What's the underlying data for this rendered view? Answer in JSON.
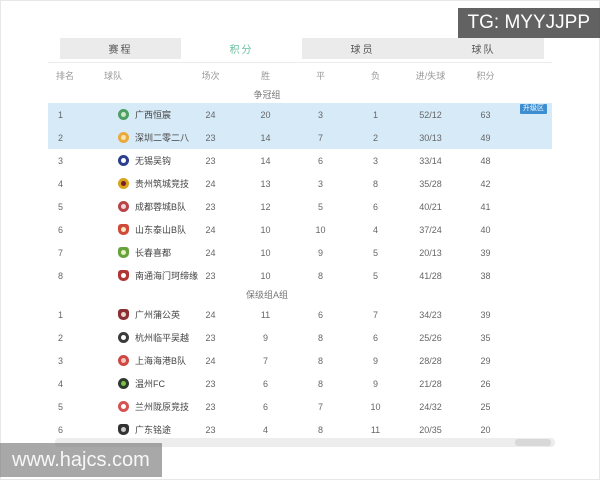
{
  "watermarks": {
    "top_right": "TG: MYYJJPP",
    "bottom_left": "www.hajcs.com"
  },
  "tabs": [
    {
      "key": "schedule",
      "label": "赛程",
      "active": false
    },
    {
      "key": "standings",
      "label": "积分",
      "active": true
    },
    {
      "key": "players",
      "label": "球员",
      "active": false
    },
    {
      "key": "teams",
      "label": "球队",
      "active": false
    }
  ],
  "colors": {
    "active_tab_text": "#6abf9e",
    "inactive_tab_bg": "#ebebeb",
    "highlight_row_bg": "#d7eaf8",
    "promotion_tag_bg": "#3d8ed0"
  },
  "table": {
    "columns": [
      {
        "key": "rank",
        "label": "排名"
      },
      {
        "key": "team",
        "label": "球队"
      },
      {
        "key": "played",
        "label": "场次"
      },
      {
        "key": "win",
        "label": "胜"
      },
      {
        "key": "draw",
        "label": "平"
      },
      {
        "key": "loss",
        "label": "负"
      },
      {
        "key": "goals",
        "label": "进/失球"
      },
      {
        "key": "points",
        "label": "积分"
      }
    ],
    "groups": [
      {
        "name": "争冠组",
        "rows": [
          {
            "rank": "1",
            "team": "广西恒宸",
            "icon": "team-crest-icon",
            "shape": "circle",
            "icon_color": "#4c9e63",
            "icon_inner": "#cfe6c8",
            "played": "24",
            "win": "20",
            "draw": "3",
            "loss": "1",
            "goals": "52/12",
            "points": "63",
            "highlighted": true,
            "tag": "升级区"
          },
          {
            "rank": "2",
            "team": "深圳二零二八",
            "icon": "team-crest-icon",
            "shape": "circle",
            "icon_color": "#e9a93c",
            "icon_inner": "#f6e3b0",
            "played": "23",
            "win": "14",
            "draw": "7",
            "loss": "2",
            "goals": "30/13",
            "points": "49",
            "highlighted": true,
            "tag": ""
          },
          {
            "rank": "3",
            "team": "无锡吴钩",
            "icon": "team-crest-icon",
            "shape": "circle",
            "icon_color": "#2c3f8f",
            "icon_inner": "#ffffff",
            "played": "23",
            "win": "14",
            "draw": "6",
            "loss": "3",
            "goals": "33/14",
            "points": "48",
            "highlighted": false,
            "tag": ""
          },
          {
            "rank": "4",
            "team": "贵州筑城竞技",
            "icon": "team-crest-icon",
            "shape": "circle",
            "icon_color": "#d8a31f",
            "icon_inner": "#7a1f1f",
            "played": "24",
            "win": "13",
            "draw": "3",
            "loss": "8",
            "goals": "35/28",
            "points": "42",
            "highlighted": false,
            "tag": ""
          },
          {
            "rank": "5",
            "team": "成都蓉城B队",
            "icon": "team-crest-icon",
            "shape": "circle",
            "icon_color": "#b8434a",
            "icon_inner": "#f2d8d8",
            "played": "23",
            "win": "12",
            "draw": "5",
            "loss": "6",
            "goals": "40/21",
            "points": "41",
            "highlighted": false,
            "tag": ""
          },
          {
            "rank": "6",
            "team": "山东泰山B队",
            "icon": "team-crest-icon",
            "shape": "shield",
            "icon_color": "#d04a3a",
            "icon_inner": "#f7e9c8",
            "played": "24",
            "win": "10",
            "draw": "10",
            "loss": "4",
            "goals": "37/24",
            "points": "40",
            "highlighted": false,
            "tag": ""
          },
          {
            "rank": "7",
            "team": "长春喜都",
            "icon": "team-crest-icon",
            "shape": "shield",
            "icon_color": "#68a23f",
            "icon_inner": "#e8f0c0",
            "played": "24",
            "win": "10",
            "draw": "9",
            "loss": "5",
            "goals": "20/13",
            "points": "39",
            "highlighted": false,
            "tag": ""
          },
          {
            "rank": "8",
            "team": "南通海门珂缔缘",
            "icon": "team-crest-icon",
            "shape": "shield",
            "icon_color": "#b03636",
            "icon_inner": "#ffffff",
            "played": "23",
            "win": "10",
            "draw": "8",
            "loss": "5",
            "goals": "41/28",
            "points": "38",
            "highlighted": false,
            "tag": ""
          }
        ]
      },
      {
        "name": "保级组A组",
        "rows": [
          {
            "rank": "1",
            "team": "广州蒲公英",
            "icon": "team-crest-icon",
            "shape": "shield",
            "icon_color": "#8c2f33",
            "icon_inner": "#e8d9d0",
            "played": "24",
            "win": "11",
            "draw": "6",
            "loss": "7",
            "goals": "34/23",
            "points": "39",
            "highlighted": false,
            "tag": ""
          },
          {
            "rank": "2",
            "team": "杭州临平吴越",
            "icon": "team-crest-icon",
            "shape": "circle",
            "icon_color": "#3b3b3b",
            "icon_inner": "#ffffff",
            "played": "23",
            "win": "9",
            "draw": "8",
            "loss": "6",
            "goals": "25/26",
            "points": "35",
            "highlighted": false,
            "tag": ""
          },
          {
            "rank": "3",
            "team": "上海海港B队",
            "icon": "team-crest-icon",
            "shape": "circle",
            "icon_color": "#cf4742",
            "icon_inner": "#f3c8c0",
            "played": "24",
            "win": "7",
            "draw": "8",
            "loss": "9",
            "goals": "28/28",
            "points": "29",
            "highlighted": false,
            "tag": ""
          },
          {
            "rank": "4",
            "team": "温州FC",
            "icon": "team-crest-icon",
            "shape": "circle",
            "icon_color": "#2f3a2f",
            "icon_inner": "#79c143",
            "played": "23",
            "win": "6",
            "draw": "8",
            "loss": "9",
            "goals": "21/28",
            "points": "26",
            "highlighted": false,
            "tag": ""
          },
          {
            "rank": "5",
            "team": "兰州陇原竞技",
            "icon": "team-crest-icon",
            "shape": "circle",
            "icon_color": "#d55252",
            "icon_inner": "#ffffff",
            "played": "23",
            "win": "6",
            "draw": "7",
            "loss": "10",
            "goals": "24/32",
            "points": "25",
            "highlighted": false,
            "tag": ""
          },
          {
            "rank": "6",
            "team": "广东铭途",
            "icon": "team-crest-icon",
            "shape": "shield",
            "icon_color": "#323232",
            "icon_inner": "#cccccc",
            "played": "23",
            "win": "4",
            "draw": "8",
            "loss": "11",
            "goals": "20/35",
            "points": "20",
            "highlighted": false,
            "tag": ""
          }
        ]
      }
    ]
  }
}
